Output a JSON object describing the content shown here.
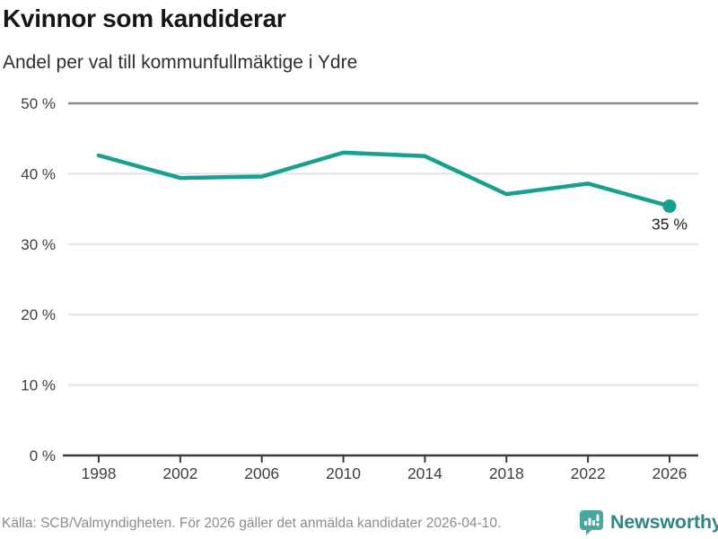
{
  "header": {
    "title": "Kvinnor som kandiderar",
    "subtitle": "Andel per val till kommunfullmäktige i Ydre"
  },
  "chart_data": {
    "type": "line",
    "title": "Kvinnor som kandiderar",
    "subtitle": "Andel per val till kommunfullmäktige i Ydre",
    "categories": [
      "1998",
      "2002",
      "2006",
      "2010",
      "2014",
      "2018",
      "2022",
      "2026"
    ],
    "values": [
      42.6,
      39.4,
      39.6,
      43.0,
      42.5,
      37.1,
      38.6,
      35.4
    ],
    "unit": "%",
    "end_label": "35 %",
    "ylim": [
      0,
      50
    ],
    "y_ticks": [
      0,
      10,
      20,
      30,
      40,
      50
    ],
    "y_tick_labels": [
      "0 %",
      "10 %",
      "20 %",
      "30 %",
      "40 %",
      "50 %"
    ],
    "grid": "horizontal",
    "legend": "none",
    "line_color": "#17a08e",
    "marker": "dot-on-last-point"
  },
  "footer": {
    "source": "Källa: SCB/Valmyndigheten. För 2026 gäller det anmälda kandidater 2026-04-10.",
    "brand": "Newsworthy"
  },
  "colors": {
    "accent_line": "#17a08e",
    "grid_light": "#e2e2e2",
    "grid_top": "#8c8c8c",
    "axis_dark": "#3b3b3b",
    "tick_label": "#404040",
    "end_label": "#1f1f1f",
    "logo_teal": "#4aa6a0",
    "brand_text": "#2e8784"
  }
}
